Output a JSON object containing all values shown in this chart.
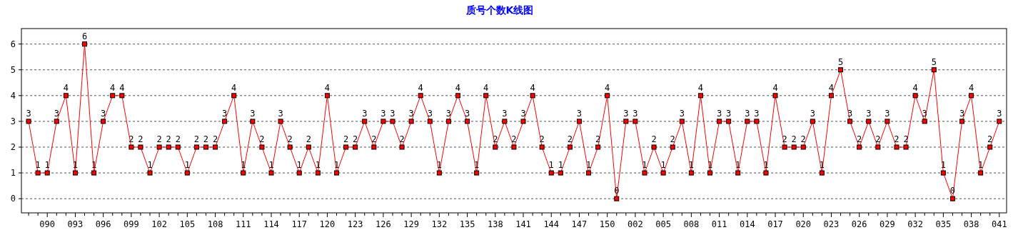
{
  "chart_data": {
    "type": "line",
    "title": "质号个数K线图",
    "categories": [
      null,
      null,
      "090",
      null,
      null,
      "093",
      null,
      null,
      "096",
      null,
      null,
      "099",
      null,
      null,
      "102",
      null,
      null,
      "105",
      null,
      null,
      "108",
      null,
      null,
      "111",
      null,
      null,
      "114",
      null,
      null,
      "117",
      null,
      null,
      "120",
      null,
      null,
      "123",
      null,
      null,
      "126",
      null,
      null,
      "129",
      null,
      null,
      "132",
      null,
      null,
      "135",
      null,
      null,
      "138",
      null,
      null,
      "141",
      null,
      null,
      "144",
      null,
      null,
      "147",
      null,
      null,
      "150",
      null,
      null,
      "002",
      null,
      null,
      "005",
      null,
      null,
      "008",
      null,
      null,
      "011",
      null,
      null,
      "014",
      null,
      null,
      "017",
      null,
      null,
      "020",
      null,
      null,
      "023",
      null,
      null,
      "026",
      null,
      null,
      "029",
      null,
      null,
      "032",
      null,
      null,
      "035",
      null,
      null,
      "038",
      null,
      null,
      "041"
    ],
    "series": [
      {
        "color": "#ff0000",
        "values": [
          3,
          1,
          1,
          3,
          4,
          1,
          6,
          1,
          3,
          4,
          4,
          2,
          2,
          1,
          2,
          2,
          2,
          1,
          2,
          2,
          2,
          3,
          4,
          1,
          3,
          2,
          1,
          3,
          2,
          1,
          2,
          1,
          4,
          1,
          2,
          2,
          3,
          2,
          3,
          3,
          2,
          3,
          4,
          3,
          1,
          3,
          4,
          3,
          1,
          4,
          2,
          3,
          2,
          3,
          4,
          2,
          1,
          1,
          2,
          3,
          1,
          2,
          4,
          0,
          3,
          3,
          1,
          2,
          1,
          2,
          3,
          1,
          4,
          1,
          3,
          3,
          1,
          3,
          3,
          1,
          4,
          2,
          2,
          2,
          3,
          1,
          4,
          5,
          3,
          2,
          3,
          2,
          3,
          2,
          2,
          4,
          3,
          5,
          1,
          0,
          3,
          4,
          1,
          2,
          3
        ]
      }
    ],
    "ylim": [
      -0.55,
      6.6
    ],
    "yticks": [
      0,
      1,
      2,
      3,
      4,
      5,
      6
    ],
    "grid": "y",
    "data_labels": true,
    "marker": "square",
    "line_style": "solid"
  }
}
